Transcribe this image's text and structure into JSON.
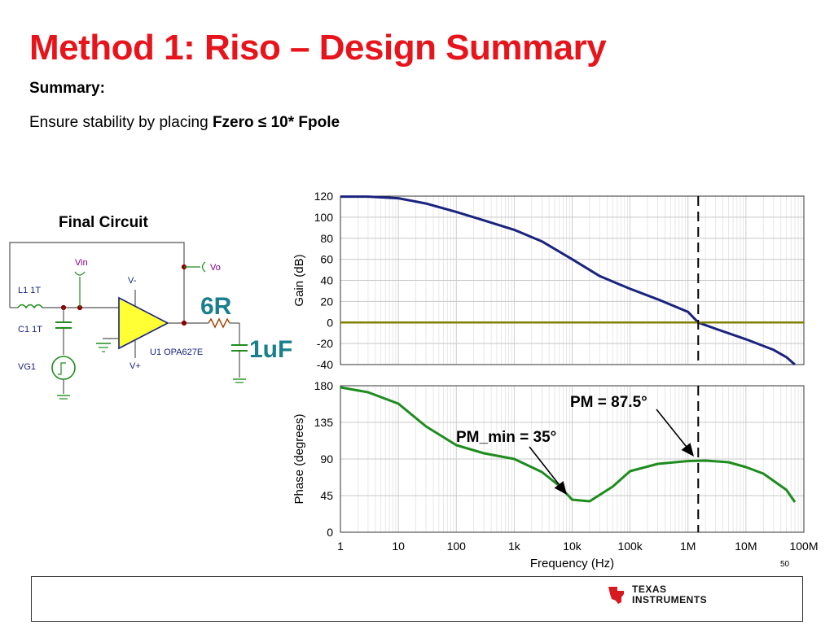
{
  "slide": {
    "title": "Method 1:  Riso – Design Summary",
    "summary_heading": "Summary:",
    "body_prefix": "Ensure stability by placing ",
    "body_bold": "Fzero ≤ 10* Fpole",
    "page_number": "50",
    "logo_line1": "Texas",
    "logo_line2": "Instruments"
  },
  "circuit": {
    "title": "Final Circuit",
    "labels": {
      "vin": "Vin",
      "vo": "Vo",
      "vminus": "V-",
      "vplus": "V+",
      "l1": "L1 1T",
      "c1": "C1 1T",
      "vg1": "VG1",
      "u1": "U1 OPA627E",
      "riso": "6R",
      "cload": "1uF"
    }
  },
  "chart_data": [
    {
      "type": "line",
      "xscale": "log",
      "xlim": [
        1,
        100000000
      ],
      "ylim": [
        -40,
        120
      ],
      "ylabel": "Gain (dB)",
      "yticks": [
        120,
        100,
        80,
        60,
        40,
        20,
        0,
        -20,
        -40
      ],
      "series": [
        {
          "color": "#1a237e",
          "x": [
            1,
            3,
            10,
            30,
            100,
            300,
            1000,
            3000,
            10000,
            30000,
            100000,
            300000,
            1000000,
            1500000,
            3000000,
            10000000,
            30000000,
            50000000,
            70000000
          ],
          "y": [
            119.5,
            119.5,
            118,
            113,
            105,
            97,
            88,
            77,
            60,
            44,
            32,
            22,
            10,
            0,
            -6,
            -16,
            -26,
            -33,
            -40
          ]
        },
        {
          "color": "#808000",
          "x": [
            1,
            100000000
          ],
          "y": [
            0,
            0
          ]
        }
      ],
      "vline_x": 1500000,
      "grid": true
    },
    {
      "type": "line",
      "xscale": "log",
      "xlim": [
        1,
        100000000
      ],
      "ylim": [
        0,
        180
      ],
      "xlabel": "Frequency (Hz)",
      "ylabel": "Phase (degrees)",
      "yticks": [
        180,
        135,
        90,
        45,
        0
      ],
      "xtick_labels": [
        "1",
        "10",
        "100",
        "1k",
        "10k",
        "100k",
        "1M",
        "10M",
        "100M"
      ],
      "series": [
        {
          "color": "#1e8c1e",
          "x": [
            1,
            3,
            10,
            30,
            100,
            300,
            1000,
            3000,
            6000,
            10000,
            20000,
            50000,
            100000,
            300000,
            1000000,
            2000000,
            5000000,
            10000000,
            20000000,
            50000000,
            70000000
          ],
          "y": [
            178,
            172,
            158,
            130,
            107,
            97,
            90,
            74,
            57,
            40,
            38,
            56,
            75,
            84,
            87.5,
            88,
            86,
            80,
            72,
            52,
            37
          ]
        }
      ],
      "vline_x": 1500000,
      "annotations": [
        {
          "text": "PM = 87.5°",
          "x": 1500000,
          "y": 87.5
        },
        {
          "text": "PM_min = 35°",
          "x": 10000,
          "y": 37
        }
      ],
      "grid": true
    }
  ]
}
